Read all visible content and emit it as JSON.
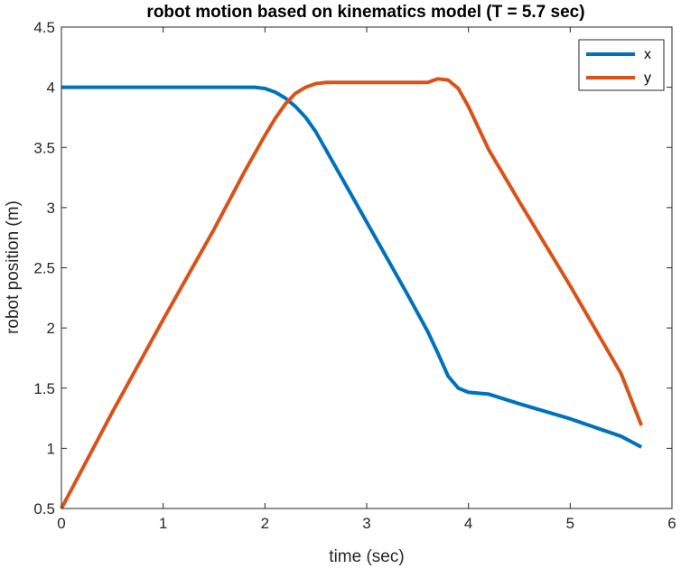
{
  "chart_data": {
    "type": "line",
    "title": "robot motion based on kinematics model (T = 5.7 sec)",
    "xlabel": "time (sec)",
    "ylabel": "robot position (m)",
    "xlim": [
      0,
      6
    ],
    "ylim": [
      0.5,
      4.5
    ],
    "xticks": [
      0,
      1,
      2,
      3,
      4,
      5,
      6
    ],
    "yticks": [
      0.5,
      1,
      1.5,
      2,
      2.5,
      3,
      3.5,
      4,
      4.5
    ],
    "xtick_labels": [
      "0",
      "1",
      "2",
      "3",
      "4",
      "5",
      "6"
    ],
    "ytick_labels": [
      "0.5",
      "1",
      "1.5",
      "2",
      "2.5",
      "3",
      "3.5",
      "4",
      "4.5"
    ],
    "grid": false,
    "legend": "top-right",
    "series": [
      {
        "name": "x",
        "color": "#0072BD",
        "points": [
          [
            0,
            4.0
          ],
          [
            0.5,
            4.0
          ],
          [
            1.0,
            4.0
          ],
          [
            1.5,
            4.0
          ],
          [
            1.9,
            4.0
          ],
          [
            2.0,
            3.99
          ],
          [
            2.1,
            3.96
          ],
          [
            2.2,
            3.91
          ],
          [
            2.3,
            3.84
          ],
          [
            2.4,
            3.75
          ],
          [
            2.5,
            3.63
          ],
          [
            2.6,
            3.48
          ],
          [
            2.8,
            3.18
          ],
          [
            3.0,
            2.88
          ],
          [
            3.2,
            2.58
          ],
          [
            3.4,
            2.28
          ],
          [
            3.6,
            1.97
          ],
          [
            3.7,
            1.79
          ],
          [
            3.8,
            1.6
          ],
          [
            3.9,
            1.5
          ],
          [
            4.0,
            1.465
          ],
          [
            4.2,
            1.45
          ],
          [
            4.5,
            1.37
          ],
          [
            5.0,
            1.245
          ],
          [
            5.5,
            1.1
          ],
          [
            5.7,
            1.01
          ]
        ]
      },
      {
        "name": "y",
        "color": "#D95319",
        "points": [
          [
            0,
            0.5
          ],
          [
            0.5,
            1.3
          ],
          [
            1.0,
            2.07
          ],
          [
            1.5,
            2.82
          ],
          [
            1.8,
            3.3
          ],
          [
            2.0,
            3.6
          ],
          [
            2.1,
            3.74
          ],
          [
            2.2,
            3.86
          ],
          [
            2.3,
            3.95
          ],
          [
            2.4,
            4.0
          ],
          [
            2.5,
            4.03
          ],
          [
            2.6,
            4.04
          ],
          [
            3.0,
            4.04
          ],
          [
            3.3,
            4.04
          ],
          [
            3.6,
            4.04
          ],
          [
            3.7,
            4.07
          ],
          [
            3.8,
            4.06
          ],
          [
            3.9,
            3.99
          ],
          [
            4.0,
            3.84
          ],
          [
            4.2,
            3.48
          ],
          [
            4.5,
            3.05
          ],
          [
            5.0,
            2.35
          ],
          [
            5.5,
            1.62
          ],
          [
            5.7,
            1.19
          ]
        ]
      }
    ]
  }
}
